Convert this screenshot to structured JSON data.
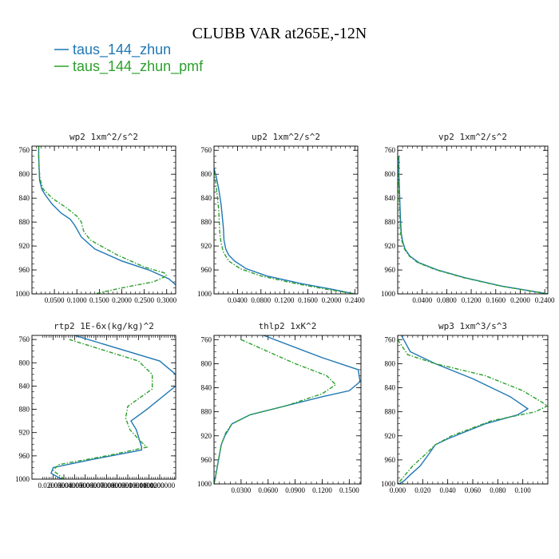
{
  "figure": {
    "title": "CLUBB VAR at265E,-12N",
    "legend": [
      {
        "label": "taus_144_zhun",
        "color": "#1f77b4"
      },
      {
        "label": "taus_144_zhun_pmf",
        "color": "#2ca02c"
      }
    ]
  },
  "chart_data": [
    {
      "type": "line",
      "title": "wp2  1xm^2/s^2",
      "xlim": [
        0.0,
        0.32
      ],
      "ylim": [
        1000,
        753
      ],
      "y_inverted": true,
      "xticks": [
        0.05,
        0.1,
        0.15,
        0.2,
        0.25,
        0.3
      ],
      "xtick_labels": [
        "0.0500",
        "0.1000",
        "0.1500",
        "0.2000",
        "0.2500",
        "0.3000"
      ],
      "yticks": [
        760,
        800,
        840,
        880,
        920,
        960,
        1000
      ],
      "ytick_labels": [
        "760",
        "800",
        "840",
        "880",
        "920",
        "960",
        "1000"
      ],
      "series": [
        {
          "name": "taus_144_zhun",
          "color": "#1f77b4",
          "dash": "solid",
          "x": [
            0.015,
            0.015,
            0.016,
            0.017,
            0.022,
            0.03,
            0.045,
            0.065,
            0.085,
            0.095,
            0.11,
            0.14,
            0.2,
            0.26,
            0.305,
            0.32
          ],
          "y": [
            753,
            770,
            790,
            810,
            825,
            835,
            850,
            865,
            875,
            885,
            905,
            925,
            945,
            960,
            975,
            985
          ]
        },
        {
          "name": "taus_144_zhun_pmf",
          "color": "#2ca02c",
          "dash": "dashed",
          "x": [
            0.015,
            0.015,
            0.016,
            0.018,
            0.025,
            0.045,
            0.075,
            0.1,
            0.11,
            0.115,
            0.13,
            0.19,
            0.25,
            0.295,
            0.3,
            0.27,
            0.2,
            0.14
          ],
          "y": [
            753,
            770,
            790,
            808,
            825,
            840,
            855,
            870,
            880,
            895,
            910,
            935,
            955,
            965,
            970,
            980,
            990,
            1000
          ]
        }
      ]
    },
    {
      "type": "line",
      "title": "up2  1xm^2/s^2",
      "xlim": [
        0.0,
        0.245
      ],
      "ylim": [
        1000,
        753
      ],
      "y_inverted": true,
      "xticks": [
        0.04,
        0.08,
        0.12,
        0.16,
        0.2,
        0.24
      ],
      "xtick_labels": [
        "0.0400",
        "0.0800",
        "0.1200",
        "0.1600",
        "0.2000",
        "0.2400"
      ],
      "yticks": [
        760,
        800,
        840,
        880,
        920,
        960,
        1000
      ],
      "ytick_labels": [
        "760",
        "800",
        "840",
        "880",
        "920",
        "960",
        "1000"
      ],
      "series": [
        {
          "name": "taus_144_zhun",
          "color": "#1f77b4",
          "dash": "solid",
          "x": [
            0.0,
            0.004,
            0.008,
            0.012,
            0.014,
            0.016,
            0.017,
            0.02,
            0.025,
            0.035,
            0.055,
            0.09,
            0.15,
            0.2,
            0.24
          ],
          "y": [
            790,
            805,
            825,
            850,
            870,
            890,
            910,
            925,
            935,
            945,
            958,
            970,
            983,
            992,
            1000
          ]
        },
        {
          "name": "taus_144_zhun_pmf",
          "color": "#2ca02c",
          "dash": "dashed",
          "x": [
            0.0,
            0.003,
            0.006,
            0.008,
            0.009,
            0.01,
            0.012,
            0.016,
            0.025,
            0.045,
            0.08,
            0.14,
            0.19,
            0.24
          ],
          "y": [
            795,
            815,
            840,
            860,
            880,
            900,
            915,
            930,
            945,
            958,
            970,
            983,
            992,
            1000
          ]
        }
      ]
    },
    {
      "type": "line",
      "title": "vp2  1xm^2/s^2",
      "xlim": [
        0.0,
        0.245
      ],
      "ylim": [
        1000,
        753
      ],
      "y_inverted": true,
      "xticks": [
        0.04,
        0.08,
        0.12,
        0.16,
        0.2,
        0.24
      ],
      "xtick_labels": [
        "0.0400",
        "0.0800",
        "0.1200",
        "0.1600",
        "0.2000",
        "0.2400"
      ],
      "yticks": [
        760,
        800,
        840,
        880,
        920,
        960,
        1000
      ],
      "ytick_labels": [
        "760",
        "800",
        "840",
        "880",
        "920",
        "960",
        "1000"
      ],
      "series": [
        {
          "name": "taus_144_zhun",
          "color": "#1f77b4",
          "dash": "solid",
          "x": [
            0.002,
            0.002,
            0.003,
            0.004,
            0.005,
            0.006,
            0.008,
            0.012,
            0.02,
            0.035,
            0.065,
            0.11,
            0.17,
            0.245
          ],
          "y": [
            770,
            800,
            830,
            860,
            885,
            900,
            912,
            925,
            937,
            948,
            960,
            973,
            987,
            1000
          ]
        },
        {
          "name": "taus_144_zhun_pmf",
          "color": "#2ca02c",
          "dash": "dashed",
          "x": [
            0.001,
            0.001,
            0.002,
            0.003,
            0.004,
            0.005,
            0.007,
            0.011,
            0.019,
            0.033,
            0.063,
            0.108,
            0.168,
            0.245
          ],
          "y": [
            770,
            800,
            830,
            860,
            885,
            900,
            912,
            925,
            937,
            948,
            960,
            973,
            987,
            1000
          ]
        }
      ]
    },
    {
      "type": "line",
      "title": "rtp2  1E-6x(kg/kg)^2",
      "xlim": [
        0.0,
        0.135
      ],
      "ylim": [
        1000,
        753
      ],
      "y_inverted": true,
      "xticks": [
        0.02,
        0.03,
        0.04,
        0.05,
        0.06,
        0.07,
        0.08,
        0.09,
        0.1,
        0.11,
        0.12
      ],
      "xtick_labels": [
        "0.0200000",
        "0.0300000",
        "0.0400000",
        "0.0500000",
        "0.0600000",
        "0.0700000",
        "0.0800000",
        "0.0900000",
        "0.1000000",
        "0.1100000",
        "0.1200000"
      ],
      "yticks": [
        760,
        800,
        840,
        880,
        920,
        960,
        1000
      ],
      "ytick_labels": [
        "760",
        "800",
        "840",
        "880",
        "920",
        "960",
        "1000"
      ],
      "series": [
        {
          "name": "taus_144_zhun",
          "color": "#1f77b4",
          "dash": "solid",
          "x": [
            0.04,
            0.12,
            0.135,
            0.135,
            0.108,
            0.093,
            0.098,
            0.103,
            0.103,
            0.06,
            0.02,
            0.018,
            0.028
          ],
          "y": [
            753,
            797,
            820,
            840,
            880,
            900,
            915,
            945,
            950,
            965,
            980,
            990,
            1000
          ]
        },
        {
          "name": "taus_144_zhun_pmf",
          "color": "#2ca02c",
          "dash": "dashed",
          "x": [
            0.035,
            0.1,
            0.113,
            0.113,
            0.09,
            0.088,
            0.092,
            0.102,
            0.108,
            0.07,
            0.025,
            0.02,
            0.03
          ],
          "y": [
            760,
            797,
            820,
            845,
            875,
            895,
            915,
            935,
            945,
            960,
            975,
            985,
            1000
          ]
        }
      ]
    },
    {
      "type": "line",
      "title": "thlp2  1xK^2",
      "xlim": [
        0.0,
        0.163
      ],
      "ylim": [
        1000,
        753
      ],
      "y_inverted": true,
      "xticks": [
        0.03,
        0.06,
        0.09,
        0.12,
        0.15
      ],
      "xtick_labels": [
        "0.0300",
        "0.0600",
        "0.0900",
        "0.1200",
        "0.1500"
      ],
      "yticks": [
        760,
        800,
        840,
        880,
        920,
        960,
        1000
      ],
      "ytick_labels": [
        "760",
        "800",
        "840",
        "880",
        "920",
        "960",
        "1000"
      ],
      "series": [
        {
          "name": "taus_144_zhun",
          "color": "#1f77b4",
          "dash": "solid",
          "x": [
            0.055,
            0.12,
            0.16,
            0.162,
            0.15,
            0.12,
            0.08,
            0.04,
            0.02,
            0.012,
            0.008,
            0.005,
            0.002,
            0.0
          ],
          "y": [
            753,
            790,
            810,
            830,
            845,
            855,
            870,
            885,
            900,
            920,
            935,
            960,
            985,
            1000
          ]
        },
        {
          "name": "taus_144_zhun_pmf",
          "color": "#2ca02c",
          "dash": "dashed",
          "x": [
            0.03,
            0.09,
            0.125,
            0.135,
            0.12,
            0.08,
            0.04,
            0.02,
            0.013,
            0.008,
            0.005,
            0.002,
            0.0
          ],
          "y": [
            760,
            800,
            820,
            835,
            850,
            870,
            885,
            900,
            915,
            935,
            960,
            985,
            1000
          ]
        }
      ]
    },
    {
      "type": "line",
      "title": "wp3  1xm^3/s^3",
      "xlim": [
        0.0,
        0.12
      ],
      "ylim": [
        1000,
        753
      ],
      "y_inverted": true,
      "xticks": [
        0.0,
        0.02,
        0.04,
        0.06,
        0.08,
        0.1
      ],
      "xtick_labels": [
        "0.000",
        "0.020",
        "0.040",
        "0.060",
        "0.080",
        "0.100"
      ],
      "yticks": [
        760,
        800,
        840,
        880,
        920,
        960,
        1000
      ],
      "ytick_labels": [
        "760",
        "800",
        "840",
        "880",
        "920",
        "960",
        "1000"
      ],
      "series": [
        {
          "name": "taus_144_zhun",
          "color": "#1f77b4",
          "dash": "solid",
          "x": [
            0.003,
            0.01,
            0.03,
            0.06,
            0.09,
            0.104,
            0.096,
            0.07,
            0.04,
            0.03,
            0.025,
            0.018,
            0.01,
            0.005,
            0.001
          ],
          "y": [
            753,
            780,
            800,
            825,
            855,
            875,
            885,
            900,
            925,
            935,
            950,
            970,
            985,
            995,
            1000
          ]
        },
        {
          "name": "taus_144_zhun_pmf",
          "color": "#2ca02c",
          "dash": "dashed",
          "x": [
            0.0,
            0.008,
            0.03,
            0.07,
            0.1,
            0.12,
            0.11,
            0.075,
            0.043,
            0.03,
            0.02,
            0.012,
            0.006,
            0.002,
            0.0
          ],
          "y": [
            760,
            785,
            800,
            820,
            845,
            870,
            880,
            895,
            920,
            935,
            955,
            970,
            985,
            995,
            1000
          ]
        }
      ]
    }
  ]
}
